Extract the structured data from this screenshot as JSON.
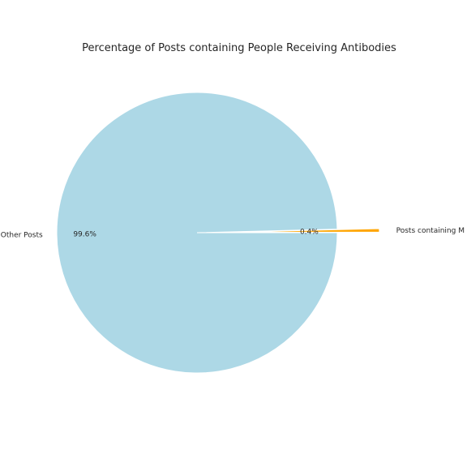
{
  "chart_data": {
    "type": "pie",
    "title": "Percentage of Posts containing People Receiving Antibodies",
    "slices": [
      {
        "label": "Posts containing M",
        "value": 0.4,
        "pct_label": "0.4%",
        "color": "#ffa500",
        "exploded": true
      },
      {
        "label": "Other Posts",
        "value": 99.6,
        "pct_label": "99.6%",
        "color": "#add8e6",
        "exploded": false
      }
    ],
    "start_angle": 0,
    "legend": "none"
  }
}
